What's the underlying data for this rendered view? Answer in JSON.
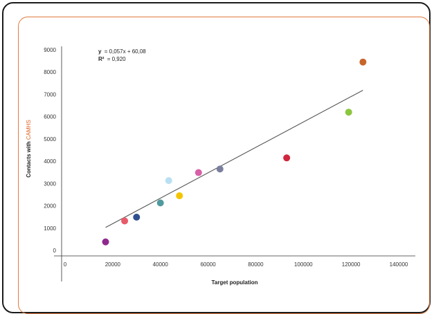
{
  "chart_data": {
    "type": "scatter",
    "xlabel": "Target population",
    "ylabel_parts": [
      "Contacts with ",
      "CAMHS"
    ],
    "ylabel_accent_color": "#e0601f",
    "xlim": [
      0,
      140000
    ],
    "ylim": [
      0,
      9000
    ],
    "x_ticks": [
      0,
      20000,
      40000,
      60000,
      80000,
      100000,
      120000,
      140000
    ],
    "y_ticks": [
      0,
      1000,
      2000,
      3000,
      4000,
      5000,
      6000,
      7000,
      8000,
      9000
    ],
    "grid": false,
    "trendline": {
      "slope": 0.057,
      "intercept": 60.08,
      "x_range": [
        17000,
        125000
      ],
      "color": "#555555",
      "equation": "= 0,057x + 60,08",
      "equation_var": "y",
      "r2_label": "R²",
      "r2_value": "= 0,920"
    },
    "points": [
      {
        "x": 17000,
        "y": 380,
        "color": "#8e2a8e"
      },
      {
        "x": 25000,
        "y": 1320,
        "color": "#e85a6a"
      },
      {
        "x": 30000,
        "y": 1490,
        "color": "#2f4f8f"
      },
      {
        "x": 40000,
        "y": 2130,
        "color": "#4f9a9e"
      },
      {
        "x": 43500,
        "y": 3130,
        "color": "#b8e0f2"
      },
      {
        "x": 48000,
        "y": 2450,
        "color": "#f5c400"
      },
      {
        "x": 56000,
        "y": 3490,
        "color": "#d860a8"
      },
      {
        "x": 65000,
        "y": 3650,
        "color": "#7a7f9e"
      },
      {
        "x": 93000,
        "y": 4150,
        "color": "#d0263e"
      },
      {
        "x": 119000,
        "y": 6200,
        "color": "#8cc63f"
      },
      {
        "x": 125000,
        "y": 8450,
        "color": "#c8652a"
      }
    ]
  }
}
